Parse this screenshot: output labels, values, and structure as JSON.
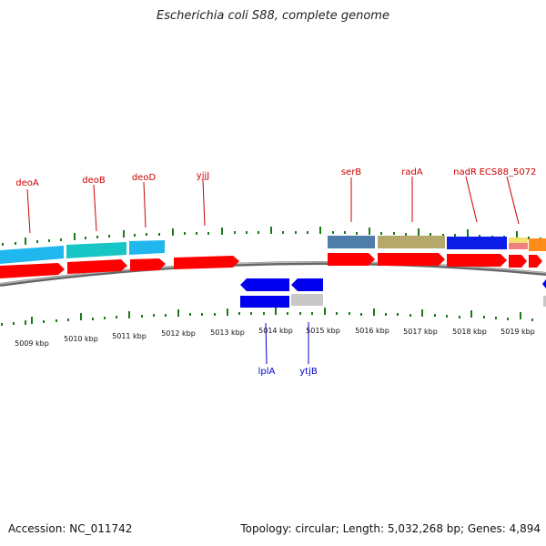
{
  "title": "Escherichia coli S88, complete genome",
  "footer": {
    "accession": "Accession: NC_011742",
    "summary": "Topology: circular; Length: 5,032,268 bp; Genes: 4,894"
  },
  "colors": {
    "backbone": "#888888",
    "tick": "#1a7a1a",
    "forward_cds": "#ff0000",
    "reverse_cds": "#0000ee",
    "label_top": "#cc0000",
    "label_bottom": "#0000cc",
    "cog_light_blue": "#1fb7ee",
    "cog_teal": "#17c5c5",
    "cog_steel": "#4d7da8",
    "cog_olive": "#b5a86a",
    "cog_blue": "#0a1ee8",
    "cog_pink": "#f08080",
    "cog_yellow": "#f5e06e",
    "cog_orange": "#ff8c1a",
    "cog_gray": "#c8c8c8"
  },
  "kbp_labels": [
    "5009 kbp",
    "5010 kbp",
    "5011 kbp",
    "5012 kbp",
    "5013 kbp",
    "5014 kbp",
    "5015 kbp",
    "5016 kbp",
    "5017 kbp",
    "5018 kbp",
    "5019 kbp"
  ],
  "top_genes": [
    "deoA",
    "deoB",
    "deoD",
    "yjjJ",
    "serB",
    "radA",
    "nadR",
    "ECS88_5072"
  ],
  "bottom_genes": [
    "lplA",
    "ytjB"
  ]
}
